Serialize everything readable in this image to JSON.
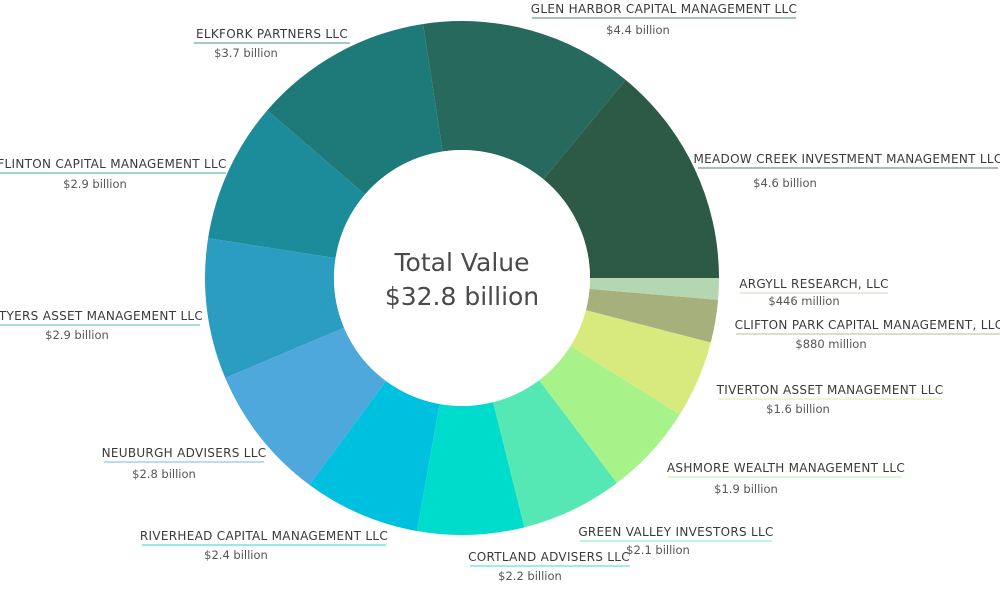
{
  "chart_data": {
    "type": "pie",
    "subtype": "donut",
    "center_title": "Total Value",
    "center_value": "$32.8 billion",
    "slices": [
      {
        "name": "MEADOW CREEK INVESTMENT MANAGEMENT LLC",
        "value": 4.6,
        "display": "$4.6 billion",
        "color": "#2d5a45"
      },
      {
        "name": "GLEN HARBOR CAPITAL MANAGEMENT LLC",
        "value": 4.4,
        "display": "$4.4 billion",
        "color": "#27695c"
      },
      {
        "name": "ELKFORK PARTNERS LLC",
        "value": 3.7,
        "display": "$3.7 billion",
        "color": "#1e7a78"
      },
      {
        "name": "FLINTON CAPITAL MANAGEMENT LLC",
        "value": 2.9,
        "display": "$2.9 billion",
        "color": "#1d8c9a"
      },
      {
        "name": "TYERS ASSET MANAGEMENT LLC",
        "value": 2.9,
        "display": "$2.9 billion",
        "color": "#2a9dc0"
      },
      {
        "name": "NEUBURGH ADVISERS LLC",
        "value": 2.8,
        "display": "$2.8 billion",
        "color": "#4ea8dc"
      },
      {
        "name": "RIVERHEAD CAPITAL MANAGEMENT LLC",
        "value": 2.4,
        "display": "$2.4 billion",
        "color": "#00c0e0"
      },
      {
        "name": "CORTLAND ADVISERS LLC",
        "value": 2.2,
        "display": "$2.2 billion",
        "color": "#00dccc"
      },
      {
        "name": "GREEN VALLEY INVESTORS LLC",
        "value": 2.1,
        "display": "$2.1 billion",
        "color": "#55e8b4"
      },
      {
        "name": "ASHMORE WEALTH MANAGEMENT LLC",
        "value": 1.9,
        "display": "$1.9 billion",
        "color": "#a8f28a"
      },
      {
        "name": "TIVERTON ASSET MANAGEMENT LLC",
        "value": 1.6,
        "display": "$1.6 billion",
        "color": "#d8ea7e"
      },
      {
        "name": "CLIFTON PARK CAPITAL MANAGEMENT, LLC",
        "value": 0.88,
        "display": "$880 million",
        "color": "#a6b07c"
      },
      {
        "name": "ARGYLL RESEARCH, LLC",
        "value": 0.446,
        "display": "$446 million",
        "color": "#b4d6b0"
      }
    ]
  }
}
